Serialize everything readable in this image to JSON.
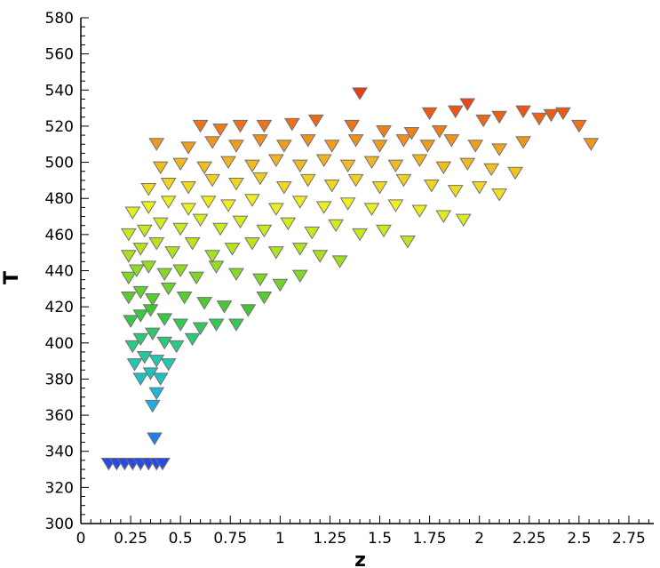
{
  "chart_data": {
    "type": "scatter",
    "title": "",
    "xlabel": "z",
    "ylabel": "T",
    "xlim": [
      0,
      2.875
    ],
    "ylim": [
      300,
      580
    ],
    "xticks": [
      "0",
      "0.25",
      "0.5",
      "0.75",
      "1",
      "1.25",
      "1.5",
      "1.75",
      "2",
      "2.25",
      "2.5",
      "2.75"
    ],
    "yticks": [
      "300",
      "320",
      "340",
      "360",
      "380",
      "400",
      "420",
      "440",
      "460",
      "480",
      "500",
      "520",
      "540",
      "560",
      "580"
    ],
    "grid": false,
    "legend": "none",
    "marker": "inverted-triangle",
    "color_by": "y",
    "colormap": [
      "#2a3ee0",
      "#1aa8f0",
      "#22c8b0",
      "#3ec832",
      "#a8e020",
      "#f0f020",
      "#f0a820",
      "#e83c14"
    ],
    "series": [
      {
        "points": [
          [
            0.14,
            333
          ],
          [
            0.18,
            333
          ],
          [
            0.22,
            333
          ],
          [
            0.26,
            333
          ],
          [
            0.3,
            333
          ],
          [
            0.34,
            333
          ],
          [
            0.38,
            333
          ],
          [
            0.41,
            333
          ],
          [
            0.37,
            347
          ],
          [
            0.36,
            365
          ],
          [
            0.38,
            372
          ],
          [
            0.3,
            380
          ],
          [
            0.35,
            383
          ],
          [
            0.4,
            380
          ],
          [
            0.27,
            388
          ],
          [
            0.32,
            392
          ],
          [
            0.38,
            390
          ],
          [
            0.44,
            388
          ],
          [
            0.26,
            398
          ],
          [
            0.3,
            402
          ],
          [
            0.36,
            405
          ],
          [
            0.42,
            400
          ],
          [
            0.48,
            398
          ],
          [
            0.56,
            402
          ],
          [
            0.25,
            412
          ],
          [
            0.3,
            415
          ],
          [
            0.35,
            418
          ],
          [
            0.42,
            413
          ],
          [
            0.5,
            410
          ],
          [
            0.6,
            408
          ],
          [
            0.68,
            410
          ],
          [
            0.78,
            410
          ],
          [
            0.24,
            425
          ],
          [
            0.3,
            428
          ],
          [
            0.36,
            424
          ],
          [
            0.44,
            430
          ],
          [
            0.52,
            425
          ],
          [
            0.62,
            422
          ],
          [
            0.72,
            420
          ],
          [
            0.84,
            418
          ],
          [
            0.92,
            425
          ],
          [
            0.24,
            436
          ],
          [
            0.28,
            440
          ],
          [
            0.34,
            442
          ],
          [
            0.42,
            438
          ],
          [
            0.5,
            440
          ],
          [
            0.58,
            436
          ],
          [
            0.68,
            442
          ],
          [
            0.78,
            438
          ],
          [
            0.9,
            435
          ],
          [
            1.0,
            432
          ],
          [
            1.1,
            437
          ],
          [
            0.24,
            448
          ],
          [
            0.3,
            452
          ],
          [
            0.38,
            455
          ],
          [
            0.46,
            450
          ],
          [
            0.56,
            455
          ],
          [
            0.66,
            448
          ],
          [
            0.76,
            452
          ],
          [
            0.86,
            455
          ],
          [
            0.98,
            450
          ],
          [
            1.1,
            452
          ],
          [
            1.2,
            448
          ],
          [
            1.3,
            445
          ],
          [
            0.24,
            460
          ],
          [
            0.32,
            462
          ],
          [
            0.4,
            466
          ],
          [
            0.5,
            463
          ],
          [
            0.6,
            468
          ],
          [
            0.7,
            463
          ],
          [
            0.8,
            467
          ],
          [
            0.92,
            462
          ],
          [
            1.04,
            466
          ],
          [
            1.16,
            461
          ],
          [
            1.28,
            465
          ],
          [
            1.4,
            460
          ],
          [
            1.52,
            462
          ],
          [
            1.64,
            456
          ],
          [
            0.26,
            472
          ],
          [
            0.34,
            475
          ],
          [
            0.44,
            478
          ],
          [
            0.54,
            474
          ],
          [
            0.64,
            478
          ],
          [
            0.74,
            476
          ],
          [
            0.86,
            479
          ],
          [
            0.98,
            474
          ],
          [
            1.1,
            478
          ],
          [
            1.22,
            475
          ],
          [
            1.34,
            477
          ],
          [
            1.46,
            474
          ],
          [
            1.58,
            476
          ],
          [
            1.7,
            473
          ],
          [
            1.82,
            470
          ],
          [
            1.92,
            468
          ],
          [
            0.34,
            485
          ],
          [
            0.44,
            488
          ],
          [
            0.54,
            486
          ],
          [
            0.66,
            490
          ],
          [
            0.78,
            488
          ],
          [
            0.9,
            491
          ],
          [
            1.02,
            486
          ],
          [
            1.14,
            490
          ],
          [
            1.26,
            487
          ],
          [
            1.38,
            490
          ],
          [
            1.5,
            486
          ],
          [
            1.62,
            490
          ],
          [
            1.76,
            487
          ],
          [
            1.88,
            484
          ],
          [
            2.0,
            486
          ],
          [
            2.1,
            482
          ],
          [
            0.4,
            497
          ],
          [
            0.5,
            499
          ],
          [
            0.62,
            497
          ],
          [
            0.74,
            500
          ],
          [
            0.86,
            498
          ],
          [
            0.98,
            501
          ],
          [
            1.1,
            498
          ],
          [
            1.22,
            501
          ],
          [
            1.34,
            498
          ],
          [
            1.46,
            500
          ],
          [
            1.58,
            498
          ],
          [
            1.7,
            501
          ],
          [
            1.82,
            497
          ],
          [
            1.94,
            499
          ],
          [
            2.06,
            496
          ],
          [
            2.18,
            494
          ],
          [
            0.38,
            510
          ],
          [
            0.54,
            508
          ],
          [
            0.66,
            511
          ],
          [
            0.78,
            509
          ],
          [
            0.9,
            512
          ],
          [
            1.02,
            509
          ],
          [
            1.14,
            512
          ],
          [
            1.26,
            509
          ],
          [
            1.38,
            512
          ],
          [
            1.5,
            509
          ],
          [
            1.62,
            512
          ],
          [
            1.74,
            509
          ],
          [
            1.86,
            512
          ],
          [
            1.98,
            509
          ],
          [
            2.1,
            507
          ],
          [
            2.22,
            511
          ],
          [
            0.6,
            520
          ],
          [
            0.7,
            518
          ],
          [
            0.8,
            520
          ],
          [
            0.92,
            520
          ],
          [
            1.06,
            521
          ],
          [
            1.18,
            523
          ],
          [
            1.36,
            520
          ],
          [
            1.52,
            517
          ],
          [
            1.66,
            516
          ],
          [
            1.8,
            517
          ],
          [
            1.88,
            528
          ],
          [
            1.94,
            532
          ],
          [
            2.02,
            523
          ],
          [
            2.1,
            525
          ],
          [
            2.22,
            528
          ],
          [
            2.3,
            524
          ],
          [
            2.36,
            526
          ],
          [
            2.42,
            527
          ],
          [
            2.5,
            520
          ],
          [
            2.56,
            510
          ],
          [
            1.4,
            538
          ],
          [
            1.75,
            527
          ]
        ]
      }
    ]
  }
}
